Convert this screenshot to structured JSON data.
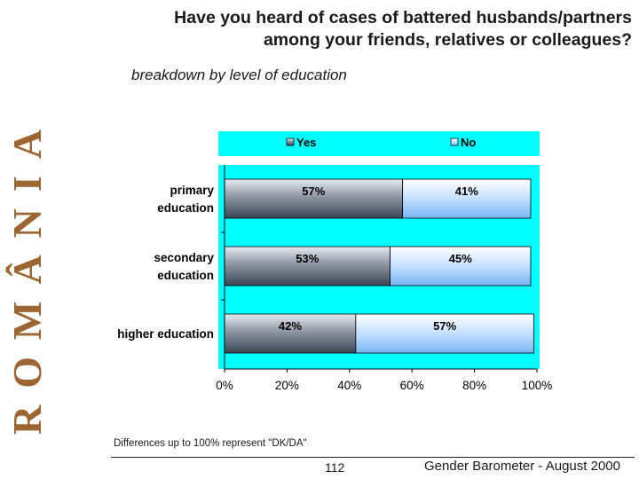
{
  "banner": {
    "text": "ROMÂNIA"
  },
  "title": {
    "line1": "Have you heard of cases of battered husbands/partners",
    "line2": "among your friends, relatives or colleagues?"
  },
  "subtitle": "breakdown by level of education",
  "note": "Differences up to 100% represent \"DK/DA\"",
  "footer": {
    "page": "112",
    "source": "Gender Barometer - August 2000"
  },
  "colors": {
    "background": "#00ffff",
    "yes": "#8a8f99",
    "no": "#9dc9f7"
  },
  "chart_data": {
    "type": "bar",
    "orientation": "horizontal",
    "stacked": true,
    "categories": [
      [
        "primary",
        "education"
      ],
      [
        "secondary",
        "education"
      ],
      [
        "higher education"
      ]
    ],
    "series": [
      {
        "name": "Yes",
        "values": [
          57,
          53,
          42
        ]
      },
      {
        "name": "No",
        "values": [
          41,
          45,
          57
        ]
      }
    ],
    "value_labels": [
      [
        "57%",
        "53%",
        "42%"
      ],
      [
        "41%",
        "45%",
        "57%"
      ]
    ],
    "x_ticks": [
      "0%",
      "20%",
      "40%",
      "60%",
      "80%",
      "100%"
    ],
    "xlim": [
      0,
      100
    ],
    "legend_position": "top",
    "grid": false
  }
}
